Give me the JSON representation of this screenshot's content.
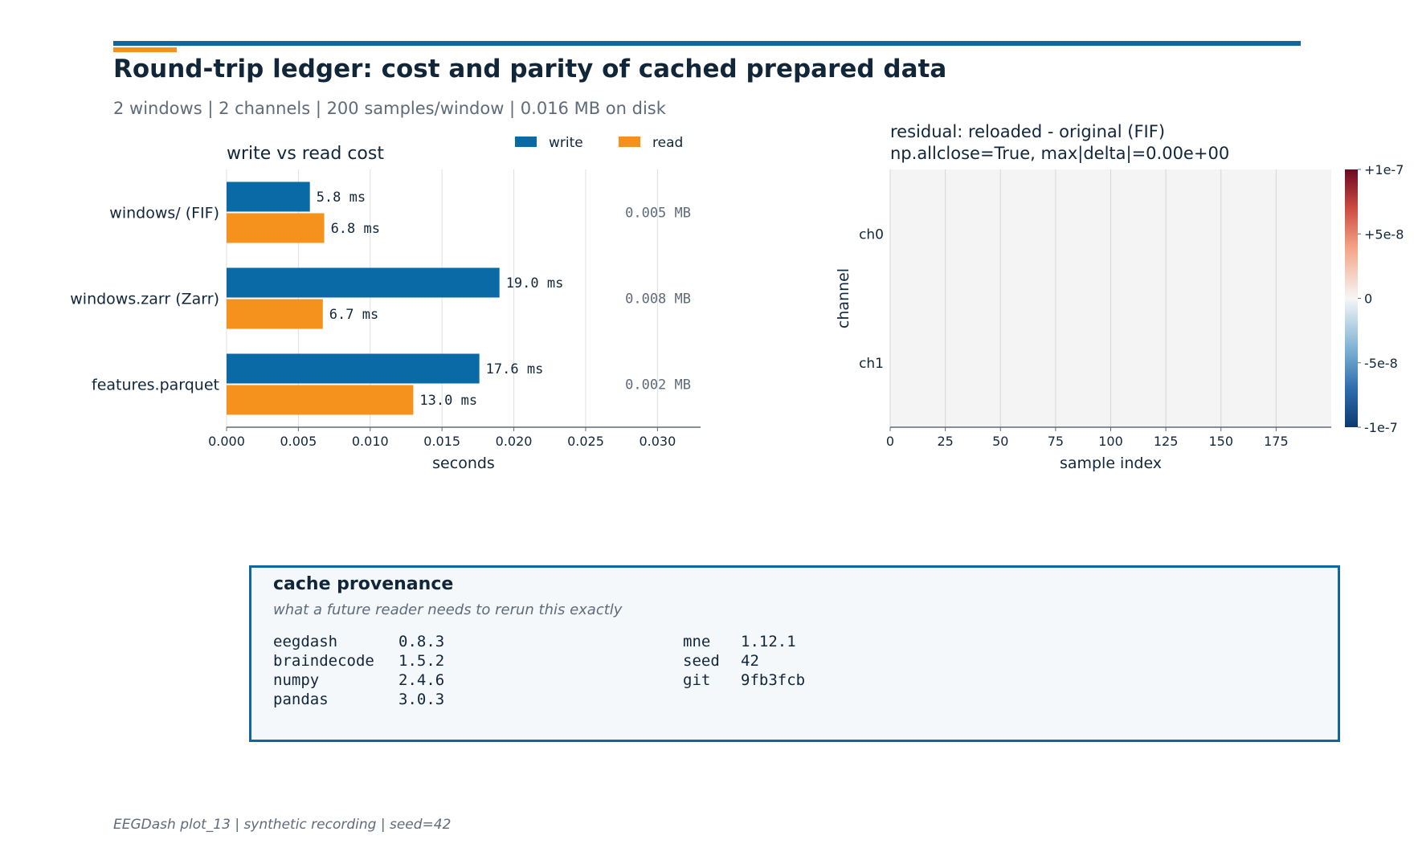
{
  "header": {
    "title": "Round-trip ledger: cost and parity of cached prepared data",
    "subtitle": "2 windows | 2 channels | 200 samples/window | 0.016 MB on disk",
    "rule_color": "#0f66a0",
    "accent_color": "#f5921e"
  },
  "chart_data": [
    {
      "type": "bar",
      "orientation": "horizontal",
      "title": "write vs read cost",
      "xlabel": "seconds",
      "ylabel": "",
      "xlim": [
        0,
        0.033
      ],
      "xticks": [
        "0.000",
        "0.005",
        "0.010",
        "0.015",
        "0.020",
        "0.025",
        "0.030"
      ],
      "categories": [
        "windows/ (FIF)",
        "windows.zarr (Zarr)",
        "features.parquet"
      ],
      "series": [
        {
          "name": "write",
          "color": "#0a6aa6",
          "values": [
            0.0058,
            0.019,
            0.0176
          ],
          "labels": [
            "5.8 ms",
            "19.0 ms",
            "17.6 ms"
          ]
        },
        {
          "name": "read",
          "color": "#f5921e",
          "values": [
            0.0068,
            0.0067,
            0.013
          ],
          "labels": [
            "6.8 ms",
            "6.7 ms",
            "13.0 ms"
          ]
        }
      ],
      "annotations": [
        "0.005 MB",
        "0.008 MB",
        "0.002 MB"
      ],
      "legend": "top-right",
      "grid": "x"
    },
    {
      "type": "heatmap",
      "title": "residual: reloaded - original (FIF)",
      "subtitle": "np.allclose=True, max|delta|=0.00e+00",
      "xlabel": "sample index",
      "ylabel": "channel",
      "xlim": [
        0,
        199
      ],
      "xticks": [
        "0",
        "25",
        "50",
        "75",
        "100",
        "125",
        "150",
        "175"
      ],
      "rows": [
        "ch0",
        "ch1"
      ],
      "values_constant": 0,
      "colorbar": {
        "colormap": "RdBu_r",
        "range": [
          -1e-07,
          1e-07
        ],
        "ticks": [
          "+1e-7",
          "+5e-8",
          "0",
          "-5e-8",
          "-1e-7"
        ]
      },
      "grid": "x"
    }
  ],
  "provenance": {
    "title": "cache provenance",
    "subtitle": "what a future reader needs to rerun this exactly",
    "left": [
      {
        "name": "eegdash",
        "value": "0.8.3"
      },
      {
        "name": "braindecode",
        "value": "1.5.2"
      },
      {
        "name": "numpy",
        "value": "2.4.6"
      },
      {
        "name": "pandas",
        "value": "3.0.3"
      }
    ],
    "right": [
      {
        "name": "mne",
        "value": "1.12.1"
      },
      {
        "name": "seed",
        "value": "42"
      },
      {
        "name": "git",
        "value": "9fb3fcb"
      }
    ]
  },
  "footer": "EEGDash plot_13 | synthetic recording | seed=42"
}
